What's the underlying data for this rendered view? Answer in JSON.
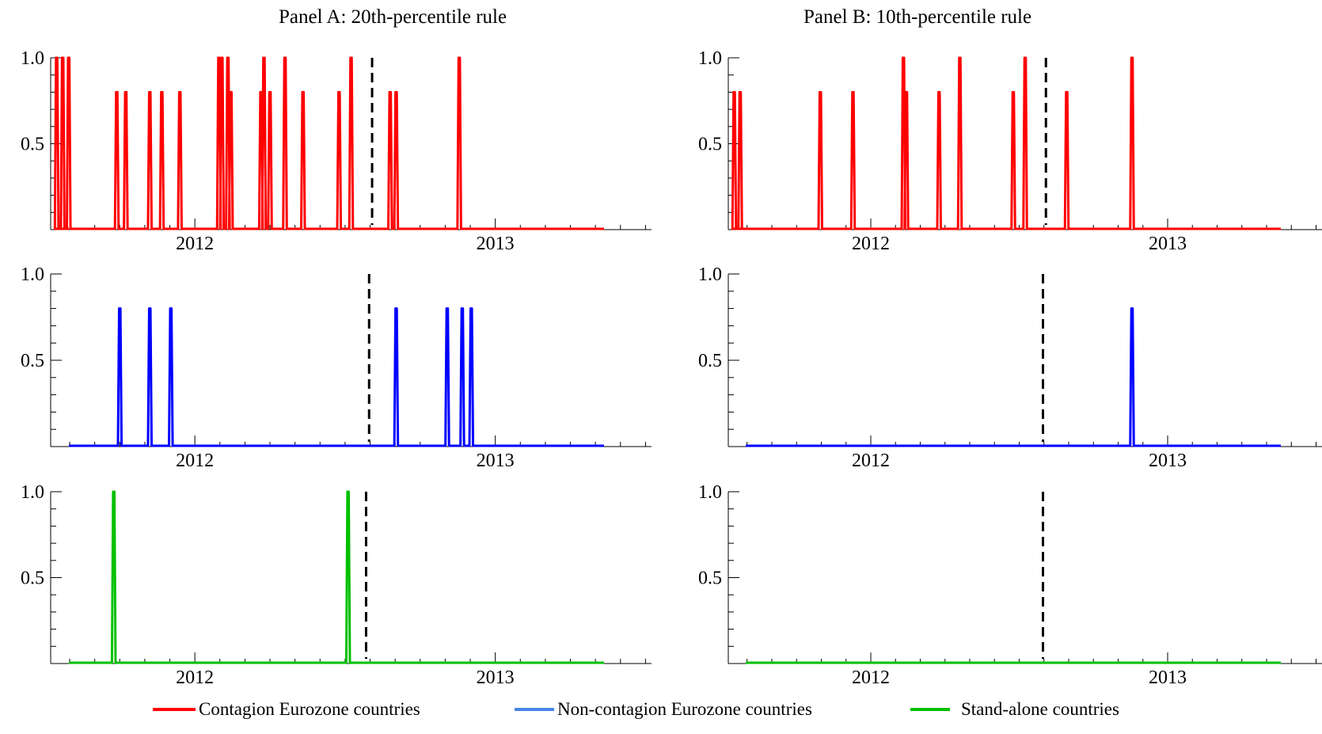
{
  "chart_data": [
    {
      "type": "line",
      "panel": "Panel A: 20th-percentile rule",
      "title": "Panel A: 20th-percentile rule",
      "series": [
        {
          "name": "Contagion Eurozone countries",
          "color": "#ff0000",
          "spikes": [
            [
              2011.54,
              1.0
            ],
            [
              2011.56,
              1.0
            ],
            [
              2011.58,
              1.0
            ],
            [
              2011.74,
              0.8
            ],
            [
              2011.77,
              0.8
            ],
            [
              2011.85,
              0.8
            ],
            [
              2011.89,
              0.8
            ],
            [
              2011.95,
              0.8
            ],
            [
              2012.08,
              1.0
            ],
            [
              2012.09,
              1.0
            ],
            [
              2012.11,
              1.0
            ],
            [
              2012.12,
              0.8
            ],
            [
              2012.22,
              0.8
            ],
            [
              2012.23,
              1.0
            ],
            [
              2012.25,
              0.8
            ],
            [
              2012.3,
              1.0
            ],
            [
              2012.36,
              0.8
            ],
            [
              2012.48,
              0.8
            ],
            [
              2012.52,
              1.0
            ],
            [
              2012.65,
              0.8
            ],
            [
              2012.67,
              0.8
            ],
            [
              2012.88,
              1.0
            ]
          ]
        }
      ],
      "vline": 2012.59,
      "xlim": [
        2011.52,
        2013.52
      ],
      "ylim": [
        0,
        1
      ],
      "x_ticks": [
        "2012",
        "2013"
      ],
      "y_ticks": [
        "0.5",
        "1.0"
      ]
    },
    {
      "type": "line",
      "panel": "Panel B: 10th-percentile rule",
      "title": "Panel B: 10th-percentile rule",
      "series": [
        {
          "name": "Contagion Eurozone countries",
          "color": "#ff0000",
          "spikes": [
            [
              2011.54,
              0.8
            ],
            [
              2011.56,
              0.8
            ],
            [
              2011.83,
              0.8
            ],
            [
              2011.94,
              0.8
            ],
            [
              2012.11,
              1.0
            ],
            [
              2012.12,
              0.8
            ],
            [
              2012.23,
              0.8
            ],
            [
              2012.3,
              1.0
            ],
            [
              2012.48,
              0.8
            ],
            [
              2012.52,
              1.0
            ],
            [
              2012.66,
              0.8
            ],
            [
              2012.88,
              1.0
            ]
          ]
        }
      ],
      "vline": 2012.59,
      "xlim": [
        2011.52,
        2013.52
      ],
      "ylim": [
        0,
        1
      ],
      "x_ticks": [
        "2012",
        "2013"
      ],
      "y_ticks": [
        "0.5",
        "1.0"
      ]
    },
    {
      "type": "line",
      "panel": "Panel A: 20th-percentile rule",
      "series": [
        {
          "name": "Non-contagion Eurozone countries",
          "color": "#0000ff",
          "spikes": [
            [
              2011.75,
              0.8
            ],
            [
              2011.85,
              0.8
            ],
            [
              2011.92,
              0.8
            ],
            [
              2012.67,
              0.8
            ],
            [
              2012.84,
              0.8
            ],
            [
              2012.89,
              0.8
            ],
            [
              2012.92,
              0.8
            ]
          ]
        }
      ],
      "vline": 2012.58,
      "xlim": [
        2011.52,
        2013.52
      ],
      "ylim": [
        0,
        1
      ],
      "x_ticks": [
        "2012",
        "2013"
      ],
      "y_ticks": [
        "0.5",
        "1.0"
      ]
    },
    {
      "type": "line",
      "panel": "Panel B: 10th-percentile rule",
      "series": [
        {
          "name": "Non-contagion Eurozone countries",
          "color": "#0000ff",
          "spikes": [
            [
              2012.88,
              0.8
            ]
          ]
        }
      ],
      "vline": 2012.58,
      "xlim": [
        2011.52,
        2013.52
      ],
      "ylim": [
        0,
        1
      ],
      "x_ticks": [
        "2012",
        "2013"
      ],
      "y_ticks": [
        "0.5",
        "1.0"
      ]
    },
    {
      "type": "line",
      "panel": "Panel A: 20th-percentile rule",
      "series": [
        {
          "name": "Stand-alone countries",
          "color": "#00c000",
          "spikes": [
            [
              2011.73,
              1.0
            ],
            [
              2012.51,
              1.0
            ]
          ]
        }
      ],
      "vline": 2012.57,
      "xlim": [
        2011.52,
        2013.52
      ],
      "ylim": [
        0,
        1
      ],
      "x_ticks": [
        "2012",
        "2013"
      ],
      "y_ticks": [
        "0.5",
        "1.0"
      ]
    },
    {
      "type": "line",
      "panel": "Panel B: 10th-percentile rule",
      "series": [
        {
          "name": "Stand-alone countries",
          "color": "#00c000",
          "spikes": []
        }
      ],
      "vline": 2012.58,
      "xlim": [
        2011.52,
        2013.52
      ],
      "ylim": [
        0,
        1
      ],
      "x_ticks": [
        "2012",
        "2013"
      ],
      "y_ticks": [
        "0.5",
        "1.0"
      ]
    }
  ],
  "panel_titles": {
    "a": "Panel A: 20th-percentile rule",
    "b": "Panel B: 10th-percentile rule"
  },
  "legend": [
    {
      "label": "Contagion Eurozone countries",
      "color": "#ff0000"
    },
    {
      "label": "Non-contagion Eurozone countries",
      "color": "#4a86e8"
    },
    {
      "label": "Stand-alone countries",
      "color": "#00c000"
    }
  ]
}
